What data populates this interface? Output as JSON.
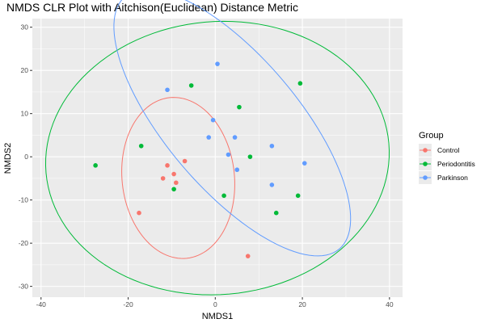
{
  "chart_data": {
    "type": "scatter",
    "title": "NMDS CLR Plot with Aitchison(Euclidean) Distance Metric",
    "xlabel": "NMDS1",
    "ylabel": "NMDS2",
    "xlim": [
      -42,
      43
    ],
    "ylim": [
      -32.5,
      32
    ],
    "x_ticks": [
      -40,
      -20,
      0,
      20,
      40
    ],
    "y_ticks": [
      -30,
      -20,
      -10,
      0,
      10,
      20,
      30
    ],
    "grid": true,
    "legend": {
      "title": "Group",
      "position": "right"
    },
    "series": [
      {
        "name": "Control",
        "color": "#F8766D",
        "points": [
          [
            -17.5,
            -13
          ],
          [
            -12,
            -5
          ],
          [
            -11,
            -2
          ],
          [
            -9.5,
            -4
          ],
          [
            -9,
            -6
          ],
          [
            -7,
            -1
          ],
          [
            7.5,
            -23
          ]
        ],
        "ellipse": {
          "center": [
            -8.5,
            -4.9
          ],
          "rx": 12.9,
          "ry": 18.7,
          "angle_deg": -6
        }
      },
      {
        "name": "Periodontitis",
        "color": "#00BA38",
        "points": [
          [
            -27.5,
            -2
          ],
          [
            -17,
            2.5
          ],
          [
            -9.5,
            -7.5
          ],
          [
            -5.5,
            16.5
          ],
          [
            2,
            -9
          ],
          [
            5.5,
            11.5
          ],
          [
            8,
            0
          ],
          [
            14,
            -13
          ],
          [
            19,
            -9
          ],
          [
            19.5,
            17
          ]
        ],
        "ellipse": {
          "center": [
            0.5,
            -0.3
          ],
          "rx": 39.5,
          "ry": 31.6,
          "angle_deg": -5
        }
      },
      {
        "name": "Parkinson",
        "color": "#619CFF",
        "points": [
          [
            -11,
            15.5
          ],
          [
            -1.5,
            4.5
          ],
          [
            -0.5,
            8.5
          ],
          [
            0.5,
            21.5
          ],
          [
            3,
            0.5
          ],
          [
            4.5,
            4.5
          ],
          [
            5,
            -3
          ],
          [
            13,
            2.5
          ],
          [
            13,
            -6.5
          ],
          [
            20.5,
            -1.5
          ]
        ],
        "ellipse": {
          "center": [
            3.9,
            7.9
          ],
          "rx": 15.2,
          "ry": 38.2,
          "angle_deg": -40
        }
      }
    ]
  }
}
